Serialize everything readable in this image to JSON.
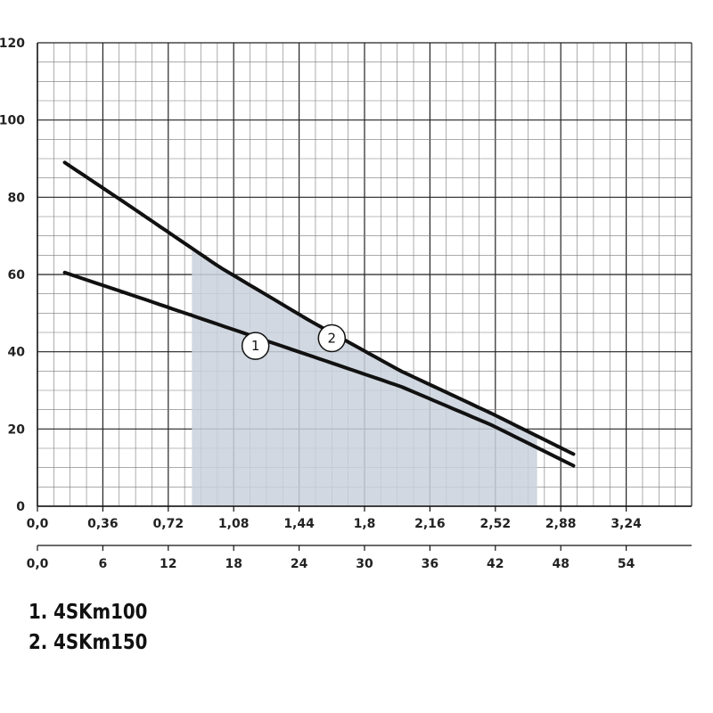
{
  "chart_data": {
    "type": "line",
    "title": "",
    "xlabel": "",
    "ylabel": "",
    "x_ticks_top": [
      "0,0",
      "0,36",
      "0,72",
      "1,08",
      "1,44",
      "1,8",
      "2,16",
      "2,52",
      "2,88",
      "3,24"
    ],
    "x_ticks_bottom": [
      "0,0",
      "6",
      "12",
      "18",
      "24",
      "30",
      "36",
      "42",
      "48",
      "54"
    ],
    "y_ticks": [
      "0",
      "20",
      "40",
      "60",
      "80",
      "100",
      "120"
    ],
    "xlim": [
      0,
      3.6
    ],
    "ylim": [
      0,
      120
    ],
    "grid": true,
    "shaded_region": {
      "x_start": 0.85,
      "x_end": 2.75,
      "color": "#c9d1dc"
    },
    "series": [
      {
        "marker": "1",
        "color": "#111111",
        "x": [
          0.15,
          0.5,
          1.0,
          1.5,
          2.0,
          2.5,
          2.95
        ],
        "y": [
          60.5,
          55,
          47,
          39,
          31,
          21,
          10.5
        ]
      },
      {
        "marker": "2",
        "color": "#111111",
        "x": [
          0.15,
          0.5,
          1.0,
          1.5,
          2.0,
          2.5,
          2.95
        ],
        "y": [
          89,
          78,
          62,
          48,
          35,
          24,
          13.5
        ]
      }
    ],
    "markers": [
      {
        "label": "1",
        "x": 1.2,
        "y": 41.5
      },
      {
        "label": "2",
        "x": 1.62,
        "y": 43.5
      }
    ]
  },
  "legend": [
    "1. 4SKm100",
    "2. 4SKm150"
  ]
}
